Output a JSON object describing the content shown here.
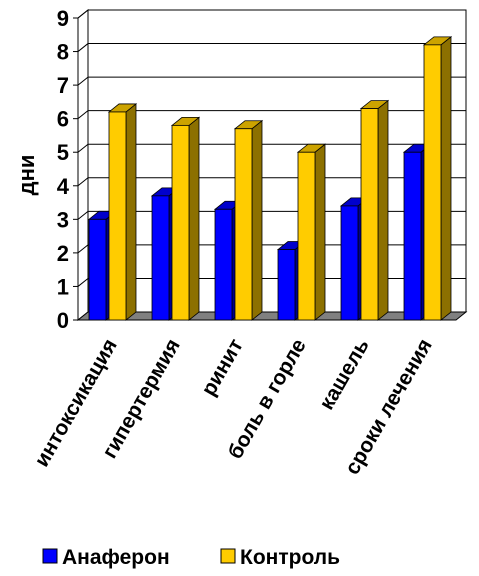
{
  "chart_data": {
    "type": "bar",
    "categories": [
      "интоксикация",
      "гипертермия",
      "ринит",
      "боль в горле",
      "кашель",
      "сроки лечения"
    ],
    "series": [
      {
        "name": "Анаферон",
        "values": [
          3.0,
          3.7,
          3.3,
          2.1,
          3.4,
          5.0
        ],
        "color": "#0000ff"
      },
      {
        "name": "Контроль",
        "values": [
          6.2,
          5.8,
          5.7,
          5.0,
          6.3,
          8.2
        ],
        "color": "#ffcc00"
      }
    ],
    "xlabel": "",
    "ylabel": "дни",
    "ylim": [
      0,
      9
    ],
    "yticks": [
      "0",
      "1",
      "2",
      "3",
      "4",
      "5",
      "6",
      "7",
      "8",
      "9"
    ],
    "grid": true,
    "legend_position": "bottom",
    "style": "3d-clustered"
  }
}
